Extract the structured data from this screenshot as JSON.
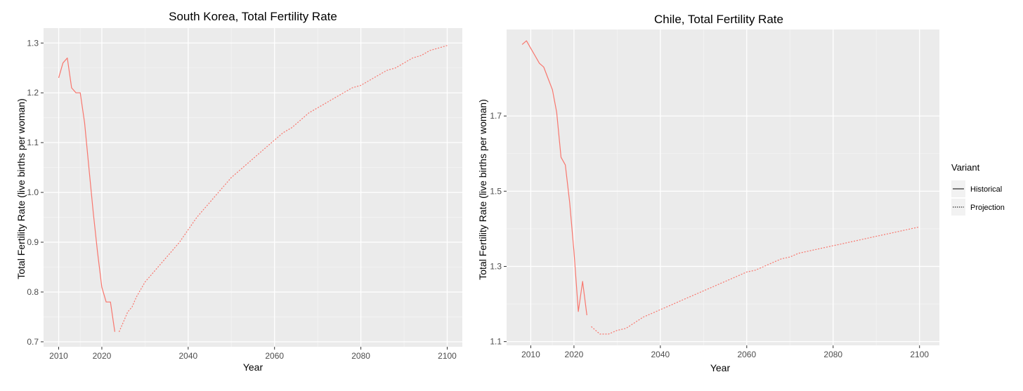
{
  "colors": {
    "panel": "#ebebeb",
    "grid_major": "#ffffff",
    "grid_minor": "#f4f4f4",
    "line": "#f8766d"
  },
  "legend": {
    "title": "Variant",
    "entries": [
      {
        "label": "Historical",
        "linetype": "solid"
      },
      {
        "label": "Projection",
        "linetype": "dotted"
      }
    ],
    "position": "right"
  },
  "chart_data": [
    {
      "type": "line",
      "title": "South Korea, Total Fertility Rate",
      "xlabel": "Year",
      "ylabel": "Total Fertility Rate (live births per woman)",
      "xlim": [
        2006.5,
        2103.5
      ],
      "ylim": [
        0.69,
        1.33
      ],
      "xticks": [
        2010,
        2020,
        2040,
        2060,
        2080,
        2100
      ],
      "yticks": [
        0.7,
        0.8,
        0.9,
        1.0,
        1.1,
        1.2,
        1.3
      ],
      "ytick_labels": [
        "0.7",
        "0.8",
        "0.9",
        "1.0",
        "1.1",
        "1.2",
        "1.3"
      ],
      "grid": true,
      "series": [
        {
          "name": "Historical",
          "linetype": "solid",
          "x": [
            2010,
            2011,
            2012,
            2013,
            2014,
            2015,
            2016,
            2017,
            2018,
            2019,
            2020,
            2021,
            2022,
            2023
          ],
          "y": [
            1.23,
            1.26,
            1.27,
            1.21,
            1.2,
            1.2,
            1.14,
            1.05,
            0.96,
            0.88,
            0.81,
            0.78,
            0.78,
            0.72
          ]
        },
        {
          "name": "Projection",
          "linetype": "dotted",
          "x": [
            2024,
            2025,
            2026,
            2027,
            2028,
            2030,
            2032,
            2034,
            2036,
            2038,
            2040,
            2042,
            2044,
            2046,
            2048,
            2050,
            2052,
            2054,
            2056,
            2058,
            2060,
            2062,
            2064,
            2066,
            2068,
            2070,
            2072,
            2074,
            2076,
            2078,
            2080,
            2082,
            2084,
            2086,
            2088,
            2090,
            2092,
            2094,
            2096,
            2098,
            2100
          ],
          "y": [
            0.72,
            0.74,
            0.76,
            0.77,
            0.79,
            0.82,
            0.84,
            0.86,
            0.88,
            0.9,
            0.925,
            0.95,
            0.97,
            0.99,
            1.01,
            1.03,
            1.045,
            1.06,
            1.075,
            1.09,
            1.105,
            1.12,
            1.13,
            1.145,
            1.16,
            1.17,
            1.18,
            1.19,
            1.2,
            1.21,
            1.215,
            1.225,
            1.235,
            1.245,
            1.25,
            1.26,
            1.27,
            1.275,
            1.285,
            1.29,
            1.295
          ]
        }
      ]
    },
    {
      "type": "line",
      "title": "Chile, Total Fertility Rate",
      "xlabel": "Year",
      "ylabel": "Total Fertility Rate (live births per woman)",
      "xlim": [
        2004.4,
        2104.6
      ],
      "ylim": [
        1.09,
        1.93
      ],
      "xticks": [
        2010,
        2020,
        2040,
        2060,
        2080,
        2100
      ],
      "yticks": [
        1.1,
        1.3,
        1.5,
        1.7
      ],
      "ytick_labels": [
        "1.1",
        "1.3",
        "1.5",
        "1.7"
      ],
      "grid": true,
      "series": [
        {
          "name": "Historical",
          "linetype": "solid",
          "x": [
            2008,
            2009,
            2010,
            2011,
            2012,
            2013,
            2014,
            2015,
            2016,
            2017,
            2018,
            2019,
            2020,
            2021,
            2022,
            2023
          ],
          "y": [
            1.89,
            1.9,
            1.88,
            1.86,
            1.84,
            1.83,
            1.8,
            1.77,
            1.71,
            1.59,
            1.57,
            1.47,
            1.34,
            1.18,
            1.26,
            1.17
          ]
        },
        {
          "name": "Projection",
          "linetype": "dotted",
          "x": [
            2024,
            2026,
            2028,
            2030,
            2032,
            2034,
            2036,
            2038,
            2040,
            2042,
            2044,
            2046,
            2048,
            2050,
            2052,
            2054,
            2056,
            2058,
            2060,
            2062,
            2064,
            2066,
            2068,
            2070,
            2072,
            2074,
            2076,
            2078,
            2080,
            2082,
            2084,
            2086,
            2088,
            2090,
            2092,
            2094,
            2096,
            2098,
            2100
          ],
          "y": [
            1.14,
            1.12,
            1.12,
            1.13,
            1.135,
            1.15,
            1.165,
            1.175,
            1.185,
            1.195,
            1.205,
            1.215,
            1.225,
            1.235,
            1.245,
            1.255,
            1.265,
            1.275,
            1.285,
            1.29,
            1.3,
            1.31,
            1.32,
            1.325,
            1.335,
            1.34,
            1.345,
            1.35,
            1.355,
            1.36,
            1.365,
            1.37,
            1.375,
            1.38,
            1.385,
            1.39,
            1.395,
            1.4,
            1.405
          ]
        }
      ]
    }
  ]
}
